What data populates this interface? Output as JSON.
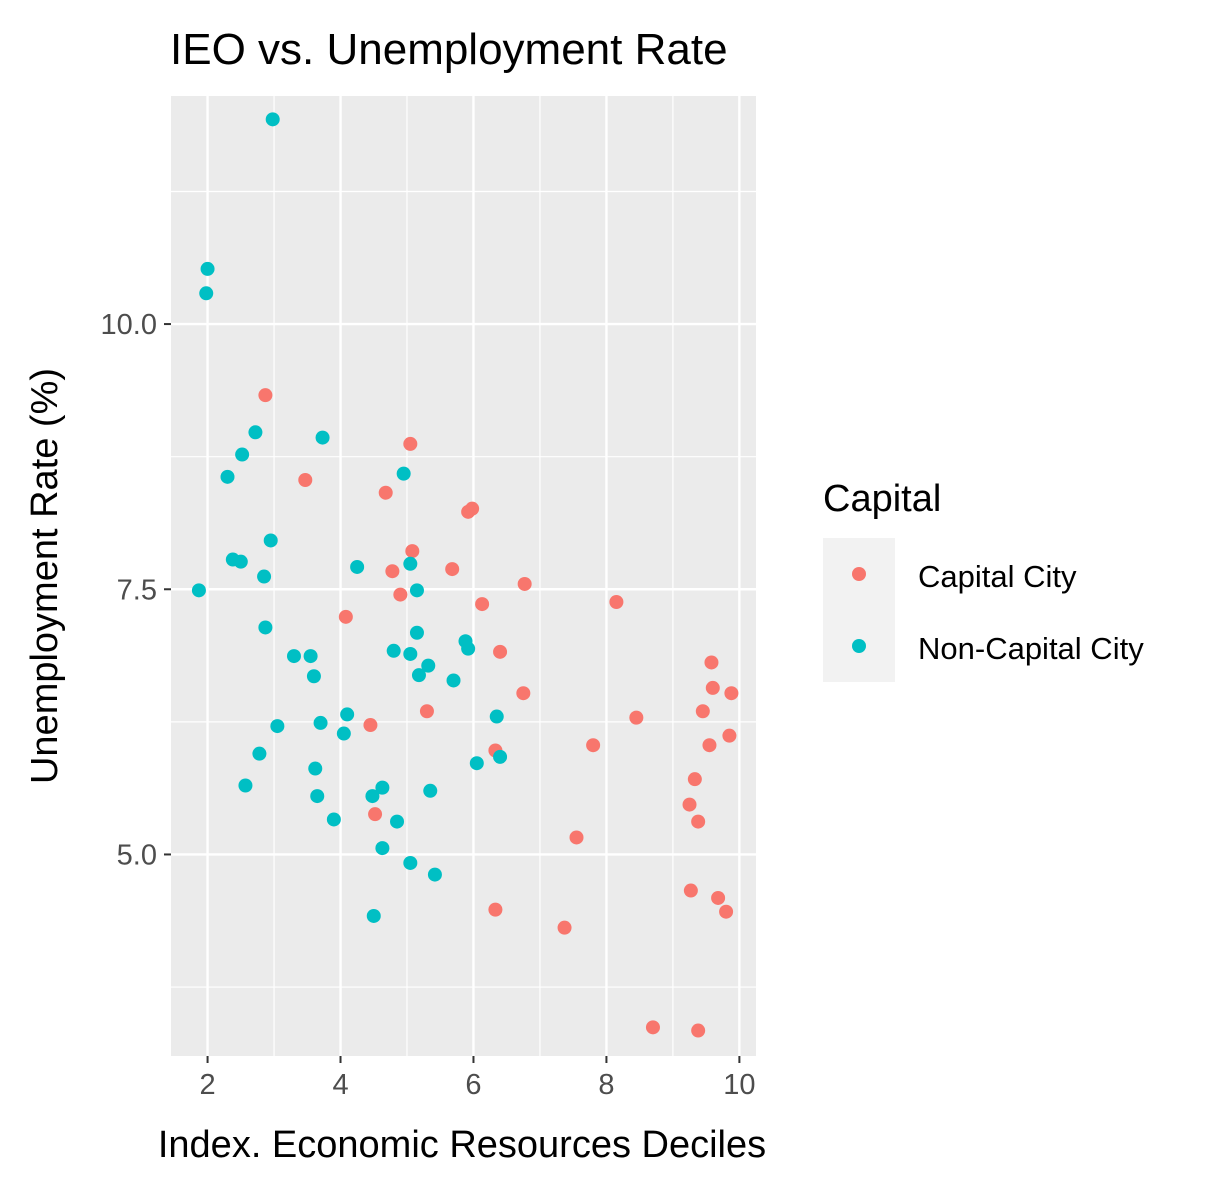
{
  "chart_data": {
    "type": "scatter",
    "title": "IEO vs. Unemployment Rate",
    "xlabel": "Index. Economic Resources Deciles",
    "ylabel": "Unemployment Rate (%)",
    "xlim": [
      1.45,
      10.25
    ],
    "ylim": [
      3.1,
      12.15
    ],
    "x_ticks": [
      2,
      4,
      6,
      8,
      10
    ],
    "x_tick_labels": [
      "2",
      "4",
      "6",
      "8",
      "10"
    ],
    "y_ticks": [
      5.0,
      7.5,
      10.0
    ],
    "y_tick_labels": [
      "5.0",
      "7.5",
      "10.0"
    ],
    "grid": true,
    "legend": {
      "title": "Capital",
      "position": "right"
    },
    "series": [
      {
        "name": "Capital City",
        "color": "#F8766D",
        "points": [
          [
            2.87,
            9.33
          ],
          [
            3.47,
            8.53
          ],
          [
            4.08,
            7.24
          ],
          [
            4.45,
            6.22
          ],
          [
            4.52,
            5.38
          ],
          [
            4.68,
            8.41
          ],
          [
            4.78,
            7.67
          ],
          [
            4.9,
            7.45
          ],
          [
            5.05,
            8.87
          ],
          [
            5.08,
            7.86
          ],
          [
            5.3,
            6.35
          ],
          [
            5.68,
            7.69
          ],
          [
            5.92,
            8.23
          ],
          [
            5.98,
            8.26
          ],
          [
            6.13,
            7.36
          ],
          [
            6.33,
            5.98
          ],
          [
            6.33,
            4.48
          ],
          [
            6.4,
            6.91
          ],
          [
            6.75,
            6.52
          ],
          [
            6.77,
            7.55
          ],
          [
            7.37,
            4.31
          ],
          [
            7.55,
            5.16
          ],
          [
            7.8,
            6.03
          ],
          [
            8.15,
            7.38
          ],
          [
            8.45,
            6.29
          ],
          [
            8.7,
            3.37
          ],
          [
            9.25,
            5.47
          ],
          [
            9.27,
            4.66
          ],
          [
            9.33,
            5.71
          ],
          [
            9.38,
            5.31
          ],
          [
            9.38,
            3.34
          ],
          [
            9.45,
            6.35
          ],
          [
            9.55,
            6.03
          ],
          [
            9.58,
            6.81
          ],
          [
            9.6,
            6.57
          ],
          [
            9.68,
            4.59
          ],
          [
            9.8,
            4.46
          ],
          [
            9.85,
            6.12
          ],
          [
            9.88,
            6.52
          ]
        ]
      },
      {
        "name": "Non-Capital City",
        "color": "#00BFC4",
        "points": [
          [
            1.87,
            7.49
          ],
          [
            1.98,
            10.29
          ],
          [
            2.0,
            10.52
          ],
          [
            2.3,
            8.56
          ],
          [
            2.38,
            7.78
          ],
          [
            2.5,
            7.76
          ],
          [
            2.52,
            8.77
          ],
          [
            2.57,
            5.65
          ],
          [
            2.72,
            8.98
          ],
          [
            2.78,
            5.95
          ],
          [
            2.85,
            7.62
          ],
          [
            2.87,
            7.14
          ],
          [
            2.95,
            7.96
          ],
          [
            2.98,
            11.93
          ],
          [
            3.05,
            6.21
          ],
          [
            3.3,
            6.87
          ],
          [
            3.55,
            6.87
          ],
          [
            3.6,
            6.68
          ],
          [
            3.62,
            5.81
          ],
          [
            3.65,
            5.55
          ],
          [
            3.7,
            6.24
          ],
          [
            3.73,
            8.93
          ],
          [
            3.9,
            5.33
          ],
          [
            4.05,
            6.14
          ],
          [
            4.1,
            6.32
          ],
          [
            4.25,
            7.71
          ],
          [
            4.48,
            5.55
          ],
          [
            4.5,
            4.42
          ],
          [
            4.63,
            5.63
          ],
          [
            4.63,
            5.06
          ],
          [
            4.8,
            6.92
          ],
          [
            4.85,
            5.31
          ],
          [
            4.95,
            8.59
          ],
          [
            5.05,
            7.74
          ],
          [
            5.05,
            6.89
          ],
          [
            5.05,
            4.92
          ],
          [
            5.15,
            7.49
          ],
          [
            5.15,
            7.09
          ],
          [
            5.18,
            6.69
          ],
          [
            5.32,
            6.78
          ],
          [
            5.35,
            5.6
          ],
          [
            5.42,
            4.81
          ],
          [
            5.7,
            6.64
          ],
          [
            5.88,
            7.01
          ],
          [
            5.92,
            6.94
          ],
          [
            6.05,
            5.86
          ],
          [
            6.35,
            6.3
          ],
          [
            6.4,
            5.92
          ]
        ]
      }
    ]
  }
}
